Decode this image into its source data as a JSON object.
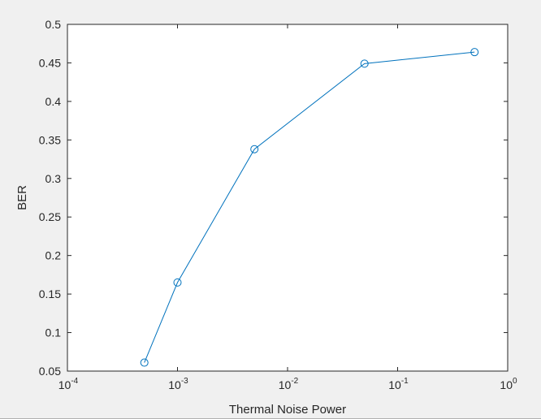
{
  "chart_data": {
    "type": "line",
    "xscale": "log",
    "xlim": [
      0.0001,
      1
    ],
    "ylim": [
      0.05,
      0.5
    ],
    "xlabel": "Thermal Noise Power",
    "ylabel": "BER",
    "x_ticks": [
      {
        "value": 0.0001,
        "base": "10",
        "exp": "-4"
      },
      {
        "value": 0.001,
        "base": "10",
        "exp": "-3"
      },
      {
        "value": 0.01,
        "base": "10",
        "exp": "-2"
      },
      {
        "value": 0.1,
        "base": "10",
        "exp": "-1"
      },
      {
        "value": 1,
        "base": "10",
        "exp": "0"
      }
    ],
    "y_ticks": [
      {
        "value": 0.05,
        "label": "0.05"
      },
      {
        "value": 0.1,
        "label": "0.1"
      },
      {
        "value": 0.15,
        "label": "0.15"
      },
      {
        "value": 0.2,
        "label": "0.2"
      },
      {
        "value": 0.25,
        "label": "0.25"
      },
      {
        "value": 0.3,
        "label": "0.3"
      },
      {
        "value": 0.35,
        "label": "0.35"
      },
      {
        "value": 0.4,
        "label": "0.4"
      },
      {
        "value": 0.45,
        "label": "0.45"
      },
      {
        "value": 0.5,
        "label": "0.5"
      }
    ],
    "series": [
      {
        "color": "#0072bd",
        "marker": "circle",
        "x": [
          0.0005,
          0.001,
          0.005,
          0.05,
          0.5
        ],
        "y": [
          0.061,
          0.165,
          0.338,
          0.449,
          0.464
        ]
      }
    ],
    "grid": false,
    "box": true
  }
}
